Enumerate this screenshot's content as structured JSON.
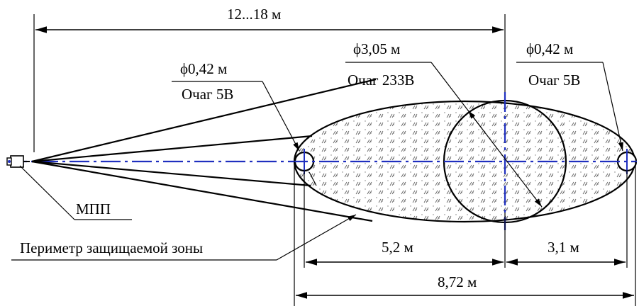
{
  "labels": {
    "total_distance": "12...18 м",
    "center_diameter": "ϕ3,05 м",
    "center_fire": "Очаг 233В",
    "left_diameter": "ϕ0,42 м",
    "left_fire": "Очаг 5В",
    "right_diameter": "ϕ0,42 м",
    "right_fire": "Очаг 5В",
    "detector": "МПП",
    "perimeter": "Периметр защищаемой зоны",
    "dim_left": "5,2 м",
    "dim_right": "3,1 м",
    "dim_total": "8,72 м"
  },
  "colors": {
    "axis": "#1f2fbf",
    "lines": "#000000"
  }
}
